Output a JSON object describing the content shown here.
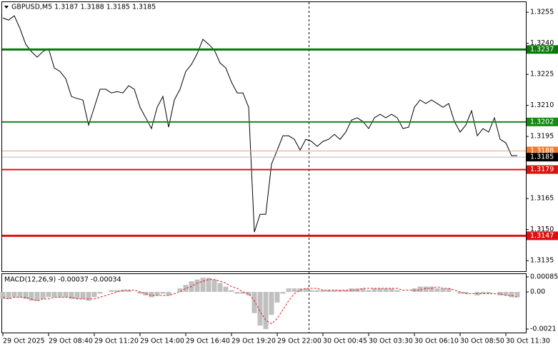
{
  "chart_data": [
    {
      "type": "line",
      "title": "GBPUSD,M5  1.3187 1.3188 1.3185 1.3185",
      "categories": [
        "29 Oct 2025",
        null,
        null,
        null,
        null,
        null,
        null,
        null,
        "29 Oct 08:40",
        null,
        null,
        null,
        null,
        null,
        null,
        null,
        "29 Oct 11:20",
        null,
        null,
        null,
        null,
        null,
        null,
        null,
        "29 Oct 14:00",
        null,
        null,
        null,
        null,
        null,
        null,
        null,
        "29 Oct 16:40",
        null,
        null,
        null,
        null,
        null,
        null,
        null,
        "29 Oct 19:20",
        null,
        null,
        null,
        null,
        null,
        null,
        null,
        "29 Oct 22:00",
        null,
        null,
        null,
        null,
        null,
        null,
        null,
        "30 Oct 00:45",
        null,
        null,
        null,
        null,
        null,
        null,
        null,
        "30 Oct 03:30",
        null,
        null,
        null,
        null,
        null,
        null,
        null,
        "30 Oct 06:10",
        null,
        null,
        null,
        null,
        null,
        null,
        null,
        "30 Oct 08:50",
        null,
        null,
        null,
        null,
        null,
        null,
        null,
        "30 Oct 11:30",
        null,
        null
      ],
      "color": "#000000",
      "values": [
        1.32522,
        1.32512,
        1.32533,
        1.32471,
        1.32395,
        1.3236,
        1.32333,
        1.3236,
        1.32374,
        1.32281,
        1.32264,
        1.32229,
        1.32143,
        1.32133,
        1.32126,
        1.32005,
        1.32091,
        1.32178,
        1.32178,
        1.3216,
        1.32167,
        1.3216,
        1.32195,
        1.32178,
        1.32091,
        1.3204,
        1.31988,
        1.32091,
        1.32143,
        1.31995,
        1.32126,
        1.32178,
        1.32264,
        1.32298,
        1.3235,
        1.32419,
        1.32395,
        1.32367,
        1.32305,
        1.32281,
        1.32212,
        1.3216,
        1.3216,
        1.32091,
        1.31488,
        1.31574,
        1.31574,
        1.31816,
        1.31884,
        1.31953,
        1.31953,
        1.31936,
        1.31884,
        1.31936,
        1.31926,
        1.31902,
        1.31926,
        1.31936,
        1.3196,
        1.31936,
        1.31971,
        1.32029,
        1.3204,
        1.32022,
        1.31988,
        1.3204,
        1.32057,
        1.3204,
        1.32057,
        1.3204,
        1.31988,
        1.31995,
        1.32091,
        1.32126,
        1.32109,
        1.32126,
        1.32109,
        1.32091,
        1.32109,
        1.32022,
        1.31971,
        1.32005,
        1.32074,
        1.31953,
        1.31988,
        1.31971,
        1.3204,
        1.31936,
        1.31919,
        1.31857,
        1.31857
      ],
      "ylim": [
        1.31299,
        1.32609
      ],
      "yticks": [
        1.3135,
        {
          "value": 1.315,
          "label": "1.3150"
        },
        1.3165,
        1.3195,
        {
          "value": 1.321,
          "label": "1.3210"
        },
        1.3225,
        {
          "value": 1.324,
          "label": "1.3240"
        },
        1.3255
      ],
      "levels": [
        {
          "value": 1.3237,
          "color": "#0b7a0b",
          "box": "#0b7a0b",
          "line_width": 3
        },
        {
          "value": 1.3202,
          "color": "#138a13",
          "box": "#138a13",
          "line_width": 2
        },
        {
          "value": 1.3188,
          "color": "#f0a070",
          "box": "#f07a2e",
          "line_width": 1
        },
        {
          "value": 1.3185,
          "color": "#b8b8b8",
          "box": "#000000",
          "line_width": 1
        },
        {
          "value": 1.3179,
          "color": "#e01010",
          "box": "#e01010",
          "line_width": 2
        },
        {
          "value": 1.3147,
          "color": "#e01010",
          "box": "#e01010",
          "line_width": 3
        }
      ]
    },
    {
      "type": "macd",
      "title": "MACD(12,26,9) -0.00037 -0.00034",
      "histogram": {
        "color": "#c0c0c0",
        "values": [
          -0.0004,
          -0.0004,
          -0.0003,
          -0.0003,
          -0.0004,
          -0.0005,
          -0.0005,
          -0.0004,
          -0.0003,
          -0.0003,
          -0.0003,
          -0.0003,
          -0.0004,
          -0.0004,
          -0.0004,
          -0.0005,
          -0.0003,
          -0.0001,
          0,
          0.0001,
          0.0001,
          0.0001,
          0.0001,
          0,
          -0.0001,
          -0.0002,
          -0.0003,
          -0.0002,
          -0.0001,
          -0.0002,
          0,
          0.0002,
          0.0004,
          0.0006,
          0.0007,
          0.0008,
          0.0008,
          0.0007,
          0.0005,
          0.0003,
          0.0001,
          -0.0001,
          -0.0001,
          -0.0002,
          -0.0012,
          -0.0019,
          -0.0021,
          -0.0013,
          -0.0006,
          -0.0001,
          0.0002,
          0.0002,
          0.0002,
          0.0002,
          0.0001,
          0.0001,
          0.0001,
          0.0001,
          0.0001,
          0.0001,
          0.0001,
          0.0002,
          0.0002,
          0.0002,
          0.0001,
          0.0002,
          0.0002,
          0.0002,
          0.0002,
          0.0001,
          0,
          0,
          0.0002,
          0.0003,
          0.0003,
          0.0003,
          0.0002,
          0.0002,
          0.0002,
          0,
          -0.0001,
          -0.0001,
          0,
          -0.0002,
          -0.0001,
          -0.0001,
          0,
          -0.0002,
          -0.0002,
          -0.0003,
          -0.0003
        ]
      },
      "signal": {
        "color": "#e02020",
        "values": [
          -0.0003,
          -0.0004,
          -0.0003,
          -0.0003,
          -0.0003,
          -0.0004,
          -0.0005,
          -0.0004,
          -0.0004,
          -0.0003,
          -0.0003,
          -0.0003,
          -0.0003,
          -0.0004,
          -0.0004,
          -0.0004,
          -0.0004,
          -0.0003,
          -0.0002,
          -0.0001,
          0,
          0.0001,
          0.0001,
          0.0001,
          0,
          -0.0001,
          -0.0002,
          -0.0002,
          -0.0002,
          -0.0002,
          -0.0001,
          0,
          0.0002,
          0.0003,
          0.0005,
          0.0006,
          0.0007,
          0.0007,
          0.0006,
          0.0005,
          0.0003,
          0.0002,
          0,
          -0.0001,
          -0.0005,
          -0.0011,
          -0.0016,
          -0.0018,
          -0.0015,
          -0.001,
          -0.0005,
          -0.0001,
          0.0001,
          0.0002,
          0.0002,
          0.0002,
          0.0001,
          0.0001,
          0.0001,
          0.0001,
          0.0001,
          0.0001,
          0.0001,
          0.0002,
          0.0002,
          0.0002,
          0.0002,
          0.0002,
          0.0002,
          0.0002,
          0.0001,
          0.0001,
          0.0001,
          0.0001,
          0.0002,
          0.0002,
          0.0003,
          0.0002,
          0.0002,
          0.0001,
          0,
          -0.0001,
          -0.0001,
          -0.0001,
          -0.0001,
          -0.0001,
          -0.0001,
          -0.0001,
          -0.0002,
          -0.0002,
          -0.0003
        ]
      },
      "ylim": [
        -0.0023,
        0.00105
      ],
      "yticks": [
        -0.0021,
        {
          "value": 0,
          "label": "0.00"
        },
        0.00085
      ]
    }
  ]
}
